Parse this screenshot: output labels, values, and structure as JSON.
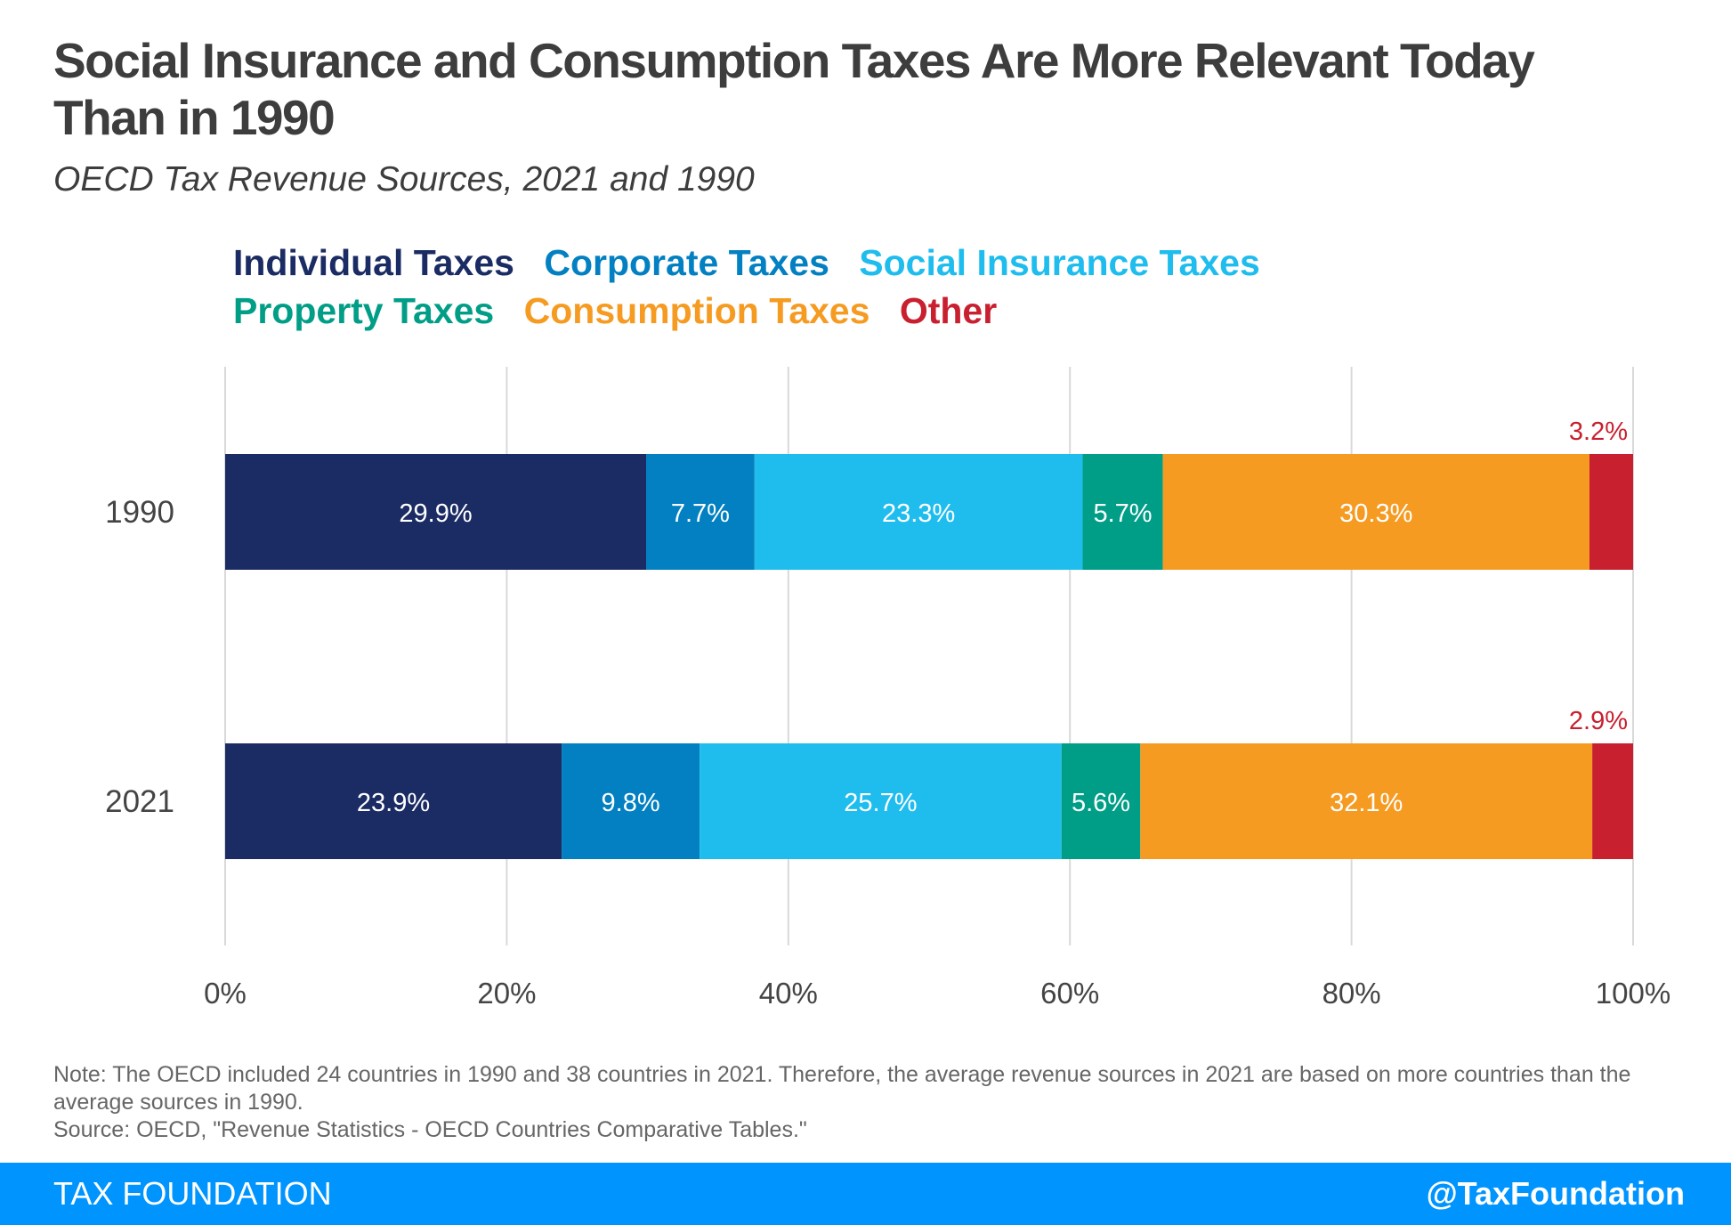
{
  "title": "Social Insurance and Consumption Taxes Are More Relevant Today Than in 1990",
  "subtitle": "OECD Tax Revenue Sources, 2021 and 1990",
  "colors": {
    "individual": "#1b2b63",
    "corporate": "#0380c2",
    "social": "#1fbdee",
    "property": "#009e87",
    "consumption": "#f69b22",
    "other": "#c8202f",
    "footer": "#0094ff"
  },
  "legend": [
    [
      "Individual Taxes",
      "Corporate Taxes",
      "Social Insurance Taxes"
    ],
    [
      "Property Taxes",
      "Consumption Taxes",
      "Other"
    ]
  ],
  "chart_data": {
    "type": "bar",
    "orientation": "horizontal",
    "stacked": true,
    "categories": [
      "1990",
      "2021"
    ],
    "series": [
      {
        "name": "Individual Taxes",
        "values": [
          29.9,
          23.9
        ],
        "labels": [
          "29.9%",
          "23.9%"
        ]
      },
      {
        "name": "Corporate Taxes",
        "values": [
          7.7,
          9.8
        ],
        "labels": [
          "7.7%",
          "9.8%"
        ]
      },
      {
        "name": "Social Insurance Taxes",
        "values": [
          23.3,
          25.7
        ],
        "labels": [
          "23.3%",
          "25.7%"
        ]
      },
      {
        "name": "Property Taxes",
        "values": [
          5.7,
          5.6
        ],
        "labels": [
          "5.7%",
          "5.6%"
        ]
      },
      {
        "name": "Consumption Taxes",
        "values": [
          30.3,
          32.1
        ],
        "labels": [
          "30.3%",
          "32.1%"
        ]
      },
      {
        "name": "Other",
        "values": [
          3.2,
          2.9
        ],
        "labels": [
          "3.2%",
          "2.9%"
        ]
      }
    ],
    "xlim": [
      0,
      100
    ],
    "xticks": [
      0,
      20,
      40,
      60,
      80,
      100
    ],
    "xtick_labels": [
      "0%",
      "20%",
      "40%",
      "60%",
      "80%",
      "100%"
    ],
    "grid": true,
    "legend_position": "top"
  },
  "notes": {
    "note": "Note: The OECD included 24 countries in 1990 and 38 countries in 2021. Therefore, the average revenue sources in 2021 are based on more countries than the average sources in 1990.",
    "source": "Source: OECD, \"Revenue Statistics - OECD Countries Comparative Tables.\""
  },
  "footer": {
    "brand": "TAX FOUNDATION",
    "handle": "@TaxFoundation"
  }
}
